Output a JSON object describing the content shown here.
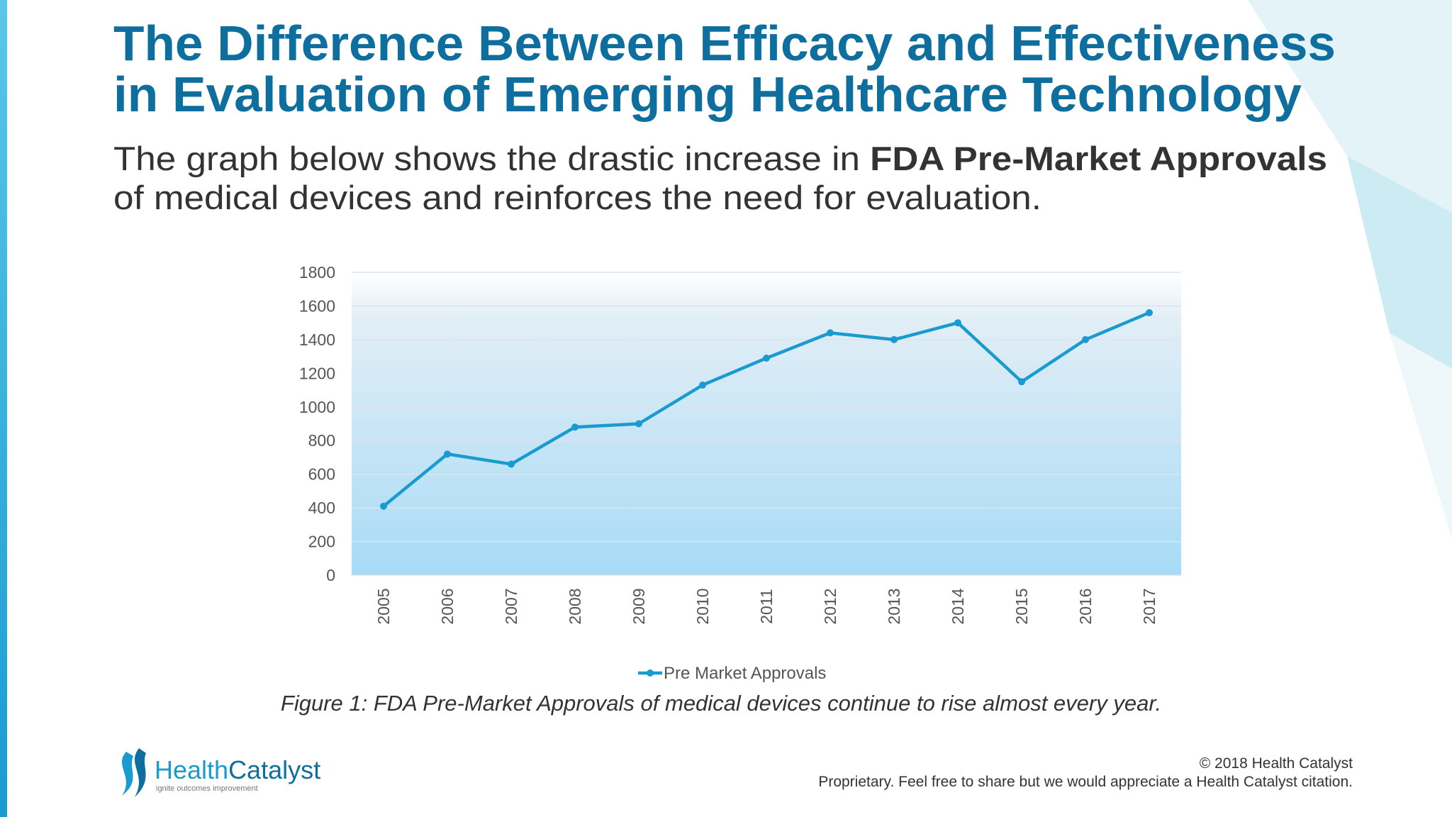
{
  "header": {
    "title_lines": [
      "The Difference Between Efficacy and Effectiveness",
      "in Evaluation of Emerging Healthcare Technology"
    ],
    "subtitle": {
      "line1_text": "The graph below shows the drastic increase in",
      "line1_bold": "FDA Pre-Market Approvals",
      "line2": "of medical devices and reinforces the need for evaluation."
    }
  },
  "chart_data": {
    "type": "line",
    "categories": [
      "2005",
      "2006",
      "2007",
      "2008",
      "2009",
      "2010",
      "2011",
      "2012",
      "2013",
      "2014",
      "2015",
      "2016",
      "2017"
    ],
    "series": [
      {
        "name": "Pre Market Approvals",
        "color": "#1a9bd0",
        "values": [
          410,
          720,
          660,
          880,
          900,
          1130,
          1290,
          1440,
          1400,
          1500,
          1150,
          1400,
          1560
        ]
      }
    ],
    "ylim": [
      0,
      1800
    ],
    "yticks": [
      0,
      200,
      400,
      600,
      800,
      1000,
      1200,
      1400,
      1600,
      1800
    ],
    "grid": true,
    "legend": "bottom"
  },
  "caption": "Figure 1: FDA Pre-Market Approvals of medical devices continue to rise almost every year.",
  "footer": {
    "logo_first": "Health",
    "logo_second": "Catalyst",
    "tagline": "ignite outcomes improvement",
    "copyright": "© 2018 Health Catalyst",
    "note": "Proprietary. Feel free to share but we would appreciate a Health Catalyst citation."
  }
}
